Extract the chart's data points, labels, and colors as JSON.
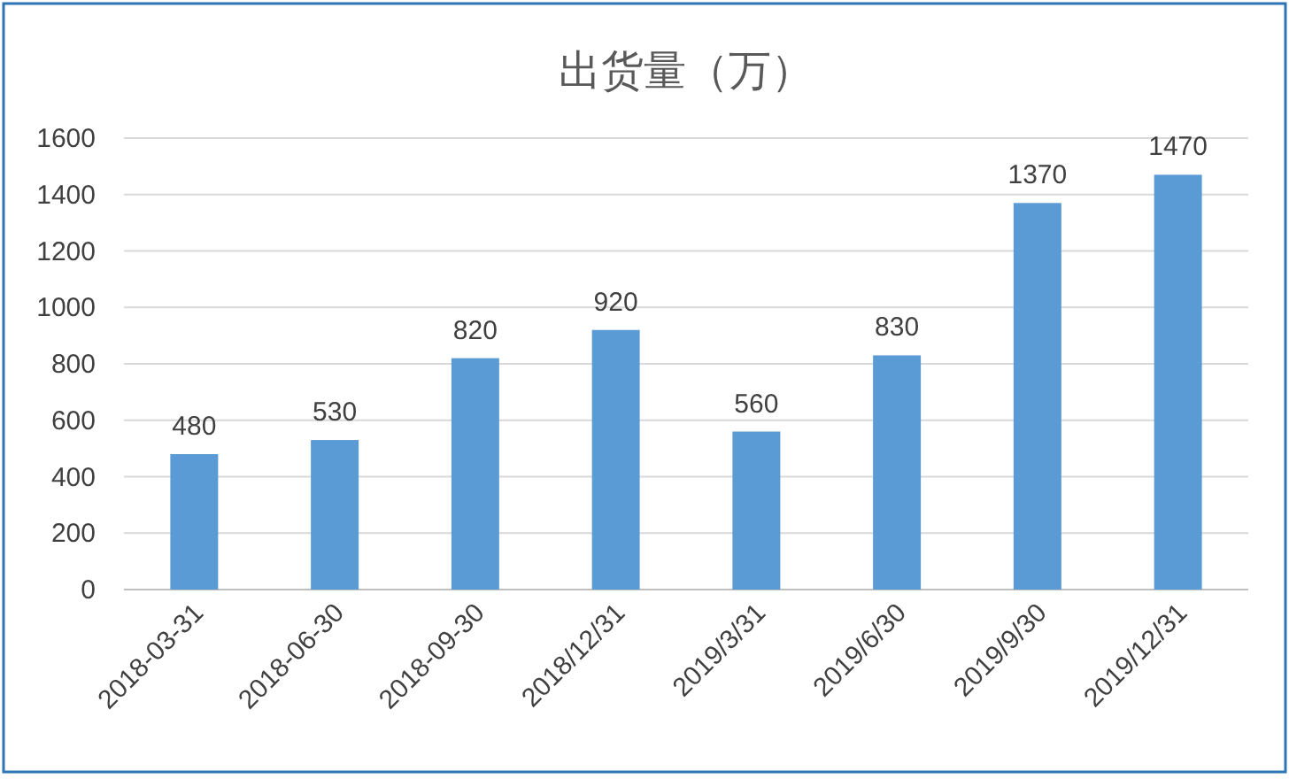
{
  "chart_data": {
    "type": "bar",
    "title": "出货量（万）",
    "categories": [
      "2018-03-31",
      "2018-06-30",
      "2018-09-30",
      "2018/12/31",
      "2019/3/31",
      "2019/6/30",
      "2019/9/30",
      "2019/12/31"
    ],
    "values": [
      480,
      530,
      820,
      920,
      560,
      830,
      1370,
      1470
    ],
    "color": "#5b9bd5",
    "ylim": [
      0,
      1600
    ],
    "yticks": [
      0,
      200,
      400,
      600,
      800,
      1000,
      1200,
      1400,
      1600
    ],
    "grid": "y",
    "data_labels": true
  }
}
